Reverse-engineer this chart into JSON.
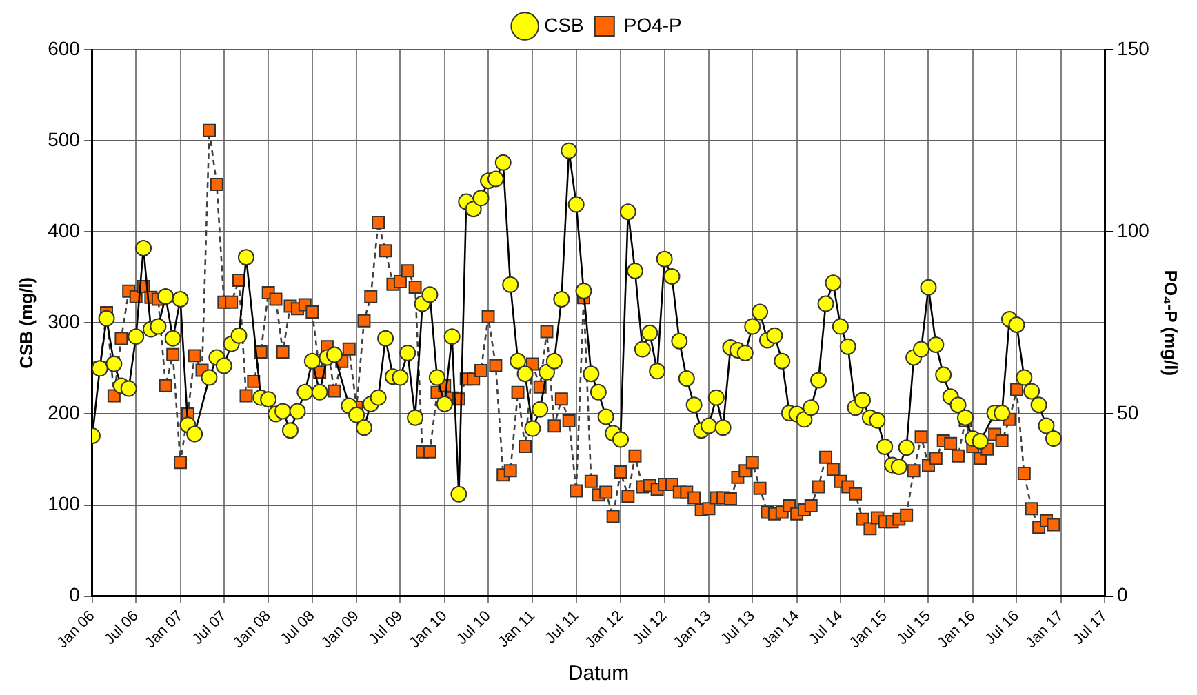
{
  "chart_data": {
    "type": "line",
    "xlabel": "Datum",
    "ylabel": "CSB (mg/l)",
    "y2label": "PO₄-P (mg/l)",
    "xlim": [
      "2006-01",
      "2017-07"
    ],
    "xticks": [
      {
        "value": "2006-01",
        "label": "Jan 06"
      },
      {
        "value": "2006-07",
        "label": "Jul 06"
      },
      {
        "value": "2007-01",
        "label": "Jan 07"
      },
      {
        "value": "2007-07",
        "label": "Jul 07"
      },
      {
        "value": "2008-01",
        "label": "Jan 08"
      },
      {
        "value": "2008-07",
        "label": "Jul 08"
      },
      {
        "value": "2009-01",
        "label": "Jan 09"
      },
      {
        "value": "2009-07",
        "label": "Jul 09"
      },
      {
        "value": "2010-01",
        "label": "Jan 10"
      },
      {
        "value": "2010-07",
        "label": "Jul 10"
      },
      {
        "value": "2011-01",
        "label": "Jan 11"
      },
      {
        "value": "2011-07",
        "label": "Jul 11"
      },
      {
        "value": "2012-01",
        "label": "Jan 12"
      },
      {
        "value": "2012-07",
        "label": "Jul 12"
      },
      {
        "value": "2013-01",
        "label": "Jan 13"
      },
      {
        "value": "2013-07",
        "label": "Jul 13"
      },
      {
        "value": "2014-01",
        "label": "Jan 14"
      },
      {
        "value": "2014-07",
        "label": "Jul 14"
      },
      {
        "value": "2015-01",
        "label": "Jan 15"
      },
      {
        "value": "2015-07",
        "label": "Jul 15"
      },
      {
        "value": "2016-01",
        "label": "Jan 16"
      },
      {
        "value": "2016-07",
        "label": "Jul 16"
      },
      {
        "value": "2017-01",
        "label": "Jan 17"
      },
      {
        "value": "2017-07",
        "label": "Jul 17"
      }
    ],
    "ylim": [
      0,
      600
    ],
    "yticks": [
      0,
      100,
      200,
      300,
      400,
      500,
      600
    ],
    "y2lim": [
      0,
      150
    ],
    "y2ticks": [
      0,
      50,
      100,
      150
    ],
    "grid": true,
    "legend": "top",
    "series": [
      {
        "name": "CSB",
        "color": "#ffff00",
        "marker": "circle",
        "line_style": "solid",
        "x": [
          "2006-01",
          "2006-02",
          "2006-03",
          "2006-04",
          "2006-05",
          "2006-06",
          "2006-07",
          "2006-08",
          "2006-09",
          "2006-10",
          "2006-11",
          "2006-12",
          "2007-01",
          "2007-02",
          "2007-03",
          "2007-05",
          "2007-06",
          "2007-07",
          "2007-08",
          "2007-09",
          "2007-10",
          "2007-12",
          "2008-01",
          "2008-02",
          "2008-03",
          "2008-04",
          "2008-05",
          "2008-06",
          "2008-07",
          "2008-08",
          "2008-09",
          "2008-10",
          "2008-12",
          "2009-01",
          "2009-02",
          "2009-03",
          "2009-04",
          "2009-05",
          "2009-06",
          "2009-07",
          "2009-08",
          "2009-09",
          "2009-10",
          "2009-11",
          "2009-12",
          "2010-01",
          "2010-02",
          "2010-03",
          "2010-04",
          "2010-05",
          "2010-06",
          "2010-07",
          "2010-08",
          "2010-09",
          "2010-10",
          "2010-11",
          "2010-12",
          "2011-01",
          "2011-02",
          "2011-03",
          "2011-04",
          "2011-05",
          "2011-06",
          "2011-07",
          "2011-08",
          "2011-09",
          "2011-10",
          "2011-11",
          "2011-12",
          "2012-01",
          "2012-02",
          "2012-03",
          "2012-04",
          "2012-05",
          "2012-06",
          "2012-07",
          "2012-08",
          "2012-09",
          "2012-10",
          "2012-11",
          "2012-12",
          "2013-01",
          "2013-02",
          "2013-03",
          "2013-04",
          "2013-05",
          "2013-06",
          "2013-07",
          "2013-08",
          "2013-09",
          "2013-10",
          "2013-11",
          "2013-12",
          "2014-01",
          "2014-02",
          "2014-03",
          "2014-04",
          "2014-05",
          "2014-06",
          "2014-07",
          "2014-08",
          "2014-09",
          "2014-10",
          "2014-11",
          "2014-12",
          "2015-01",
          "2015-02",
          "2015-03",
          "2015-04",
          "2015-05",
          "2015-06",
          "2015-07",
          "2015-08",
          "2015-09",
          "2015-10",
          "2015-11",
          "2015-12",
          "2016-01",
          "2016-02",
          "2016-04",
          "2016-05",
          "2016-06",
          "2016-07",
          "2016-08",
          "2016-09",
          "2016-10",
          "2016-11",
          "2016-12"
        ],
        "values": [
          176,
          250,
          305,
          255,
          231,
          228,
          285,
          382,
          293,
          296,
          329,
          283,
          326,
          188,
          178,
          240,
          262,
          253,
          277,
          286,
          372,
          218,
          216,
          200,
          203,
          182,
          203,
          224,
          258,
          224,
          262,
          265,
          209,
          199,
          185,
          211,
          218,
          283,
          241,
          240,
          267,
          196,
          321,
          331,
          240,
          211,
          285,
          112,
          433,
          425,
          437,
          456,
          458,
          476,
          342,
          258,
          244,
          184,
          205,
          246,
          258,
          326,
          489,
          430,
          335,
          244,
          224,
          197,
          179,
          172,
          422,
          357,
          271,
          289,
          247,
          370,
          351,
          280,
          239,
          210,
          182,
          187,
          218,
          185,
          273,
          270,
          267,
          296,
          312,
          281,
          286,
          258,
          201,
          200,
          194,
          207,
          237,
          321,
          344,
          296,
          274,
          207,
          215,
          196,
          193,
          164,
          144,
          142,
          163,
          262,
          271,
          339,
          276,
          243,
          219,
          210,
          196,
          173,
          170,
          201,
          201,
          304,
          298,
          240,
          225,
          210,
          187,
          173
        ]
      },
      {
        "name": "PO4-P",
        "color": "#ff6600",
        "marker": "square",
        "line_style": "dashed",
        "axis": "y2",
        "x": [
          "2006-02",
          "2006-03",
          "2006-04",
          "2006-05",
          "2006-06",
          "2006-07",
          "2006-08",
          "2006-09",
          "2006-10",
          "2006-11",
          "2006-12",
          "2007-01",
          "2007-02",
          "2007-03",
          "2007-04",
          "2007-05",
          "2007-06",
          "2007-07",
          "2007-08",
          "2007-09",
          "2007-10",
          "2007-11",
          "2007-12",
          "2008-01",
          "2008-02",
          "2008-03",
          "2008-04",
          "2008-05",
          "2008-06",
          "2008-07",
          "2008-08",
          "2008-09",
          "2008-10",
          "2008-11",
          "2008-12",
          "2009-01",
          "2009-02",
          "2009-03",
          "2009-04",
          "2009-05",
          "2009-06",
          "2009-07",
          "2009-08",
          "2009-09",
          "2009-10",
          "2009-11",
          "2009-12",
          "2010-01",
          "2010-02",
          "2010-03",
          "2010-04",
          "2010-05",
          "2010-06",
          "2010-07",
          "2010-08",
          "2010-09",
          "2010-10",
          "2010-11",
          "2010-12",
          "2011-01",
          "2011-02",
          "2011-03",
          "2011-04",
          "2011-05",
          "2011-06",
          "2011-07",
          "2011-08",
          "2011-09",
          "2011-10",
          "2011-11",
          "2011-12",
          "2012-01",
          "2012-02",
          "2012-03",
          "2012-04",
          "2012-05",
          "2012-06",
          "2012-07",
          "2012-08",
          "2012-09",
          "2012-10",
          "2012-11",
          "2012-12",
          "2013-01",
          "2013-02",
          "2013-03",
          "2013-04",
          "2013-05",
          "2013-06",
          "2013-07",
          "2013-08",
          "2013-09",
          "2013-10",
          "2013-11",
          "2013-12",
          "2014-01",
          "2014-02",
          "2014-03",
          "2014-04",
          "2014-05",
          "2014-06",
          "2014-07",
          "2014-08",
          "2014-09",
          "2014-10",
          "2014-11",
          "2014-12",
          "2015-01",
          "2015-02",
          "2015-03",
          "2015-04",
          "2015-05",
          "2015-06",
          "2015-07",
          "2015-08",
          "2015-09",
          "2015-10",
          "2015-11",
          "2015-12",
          "2016-01",
          "2016-02",
          "2016-03",
          "2016-04",
          "2016-05",
          "2016-06",
          "2016-07",
          "2016-08",
          "2016-09",
          "2016-10",
          "2016-11",
          "2016-12"
        ],
        "values": [
          62.6,
          77.8,
          55,
          70.7,
          83.7,
          82.2,
          85,
          82,
          81.5,
          57.8,
          66.3,
          36.7,
          50,
          66,
          62,
          127.8,
          113,
          80.7,
          80.7,
          86.7,
          55,
          58.9,
          67,
          83.3,
          81.5,
          67,
          79.6,
          78.9,
          80,
          78,
          61.5,
          68.5,
          56.3,
          64.4,
          67.8,
          51.9,
          75.6,
          82.2,
          102.6,
          94.8,
          85.6,
          86.3,
          89.3,
          84.8,
          39.6,
          39.6,
          55.9,
          57.8,
          54.4,
          54.1,
          59.6,
          59.6,
          61.9,
          76.7,
          63.3,
          33.3,
          34.4,
          55.9,
          41.1,
          63.7,
          57.4,
          72.6,
          46.7,
          54.1,
          48.1,
          28.9,
          81.9,
          31.5,
          27.8,
          28.5,
          21.9,
          34.1,
          27.4,
          38.5,
          30,
          30.4,
          29.3,
          30.7,
          30.7,
          28.5,
          28.5,
          27,
          23.7,
          24,
          27,
          27,
          26.7,
          32.6,
          34.4,
          36.7,
          29.6,
          23,
          22.6,
          23,
          24.8,
          22.6,
          23.7,
          24.8,
          30,
          38.1,
          34.8,
          31.5,
          30,
          28.1,
          21.1,
          18.5,
          21.5,
          20.4,
          20.4,
          21.1,
          22.2,
          34.4,
          43.7,
          35.9,
          37.8,
          42.6,
          41.9,
          38.5,
          48.1,
          41.1,
          37.8,
          40.4,
          44.4,
          42.6,
          48.5,
          56.7,
          33.7,
          24,
          18.9,
          20.7,
          19.6
        ]
      }
    ]
  }
}
